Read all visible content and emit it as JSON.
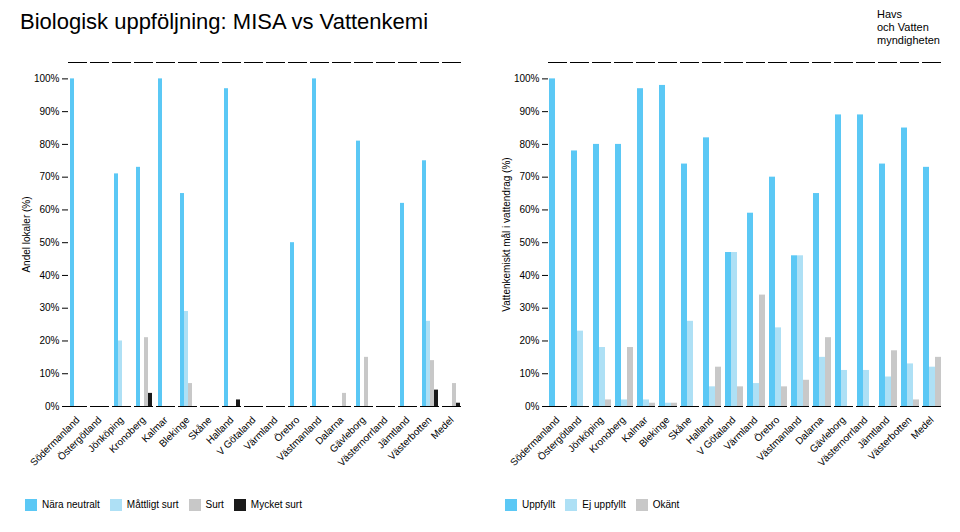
{
  "title": "Biologisk uppföljning: MISA vs Vattenkemi",
  "annotations": [
    "Havs",
    "och Vatten",
    "myndigheten"
  ],
  "chart_data": [
    {
      "type": "bar",
      "categories": [
        "Södermanland",
        "Östergötland",
        "Jönköping",
        "Kronoberg",
        "Kalmar",
        "Blekinge",
        "Skåne",
        "Halland",
        "V Götaland",
        "Värmland",
        "Örebro",
        "Västmanland",
        "Dalarna",
        "Gävleborg",
        "Västernorrland",
        "Jämtland",
        "Västerbotten",
        "Medel"
      ],
      "series": [
        {
          "name": "Nära neutralt",
          "color": "#5BC8F5",
          "values": [
            100,
            0,
            71,
            73,
            100,
            65,
            0,
            97,
            0,
            0,
            50,
            100,
            0,
            81,
            0,
            62,
            75,
            0
          ]
        },
        {
          "name": "Måttligt surt",
          "color": "#AEE0F5",
          "values": [
            0,
            0,
            20,
            0,
            0,
            29,
            0,
            0,
            0,
            0,
            0,
            0,
            0,
            0,
            0,
            0,
            26,
            0
          ]
        },
        {
          "name": "Surt",
          "color": "#C8C8C8",
          "values": [
            0,
            0,
            0,
            21,
            0,
            7,
            0,
            0,
            0,
            0,
            0,
            0,
            4,
            15,
            0,
            0,
            14,
            7
          ]
        },
        {
          "name": "Mycket surt",
          "color": "#1A1A1A",
          "values": [
            0,
            0,
            0,
            4,
            0,
            0,
            0,
            2,
            0,
            0,
            0,
            0,
            0,
            0,
            0,
            0,
            5,
            1
          ]
        }
      ],
      "ylabel": "Andel lokaler (%)",
      "ylim": [
        0,
        105
      ],
      "yticks": [
        {
          "value": 0,
          "label": "0%"
        },
        {
          "value": 10,
          "label": "10%"
        },
        {
          "value": 20,
          "label": "20%"
        },
        {
          "value": 30,
          "label": "30%"
        },
        {
          "value": 40,
          "label": "40%"
        },
        {
          "value": 50,
          "label": "50%"
        },
        {
          "value": 60,
          "label": "60%"
        },
        {
          "value": 70,
          "label": "70%"
        },
        {
          "value": 80,
          "label": "80%"
        },
        {
          "value": 90,
          "label": "90%"
        },
        {
          "value": 100,
          "label": "100%"
        }
      ],
      "grid": false,
      "legend": "bottom"
    },
    {
      "type": "bar",
      "categories": [
        "Södermanland",
        "Östergötland",
        "Jönköping",
        "Kronoberg",
        "Kalmar",
        "Blekinge",
        "Skåne",
        "Halland",
        "V Götaland",
        "Värmland",
        "Örebro",
        "Västmanland",
        "Dalarna",
        "Gävleborg",
        "Västernorrland",
        "Jämtland",
        "Västerbotten",
        "Medel"
      ],
      "series": [
        {
          "name": "Uppfyllt",
          "color": "#5BC8F5",
          "values": [
            100,
            78,
            80,
            80,
            97,
            98,
            74,
            82,
            47,
            59,
            70,
            46,
            65,
            89,
            89,
            74,
            85,
            73
          ]
        },
        {
          "name": "Ej uppfyllt",
          "color": "#AEE0F5",
          "values": [
            0,
            23,
            18,
            2,
            2,
            1,
            26,
            6,
            47,
            7,
            24,
            46,
            15,
            11,
            11,
            9,
            13,
            12
          ]
        },
        {
          "name": "Okänt",
          "color": "#C8C8C8",
          "values": [
            0,
            0,
            2,
            18,
            1,
            1,
            0,
            12,
            6,
            34,
            6,
            8,
            21,
            0,
            0,
            17,
            2,
            15
          ]
        }
      ],
      "ylabel": "Vattenkemiskt mål i vattendrag (%)",
      "ylim": [
        0,
        105
      ],
      "yticks": [
        {
          "value": 0,
          "label": "0%"
        },
        {
          "value": 10,
          "label": "10%"
        },
        {
          "value": 20,
          "label": "20%"
        },
        {
          "value": 30,
          "label": "30%"
        },
        {
          "value": 40,
          "label": "40%"
        },
        {
          "value": 50,
          "label": "50%"
        },
        {
          "value": 60,
          "label": "60%"
        },
        {
          "value": 70,
          "label": "70%"
        },
        {
          "value": 80,
          "label": "80%"
        },
        {
          "value": 90,
          "label": "90%"
        },
        {
          "value": 100,
          "label": "100%"
        }
      ],
      "grid": false,
      "legend": "bottom"
    }
  ]
}
